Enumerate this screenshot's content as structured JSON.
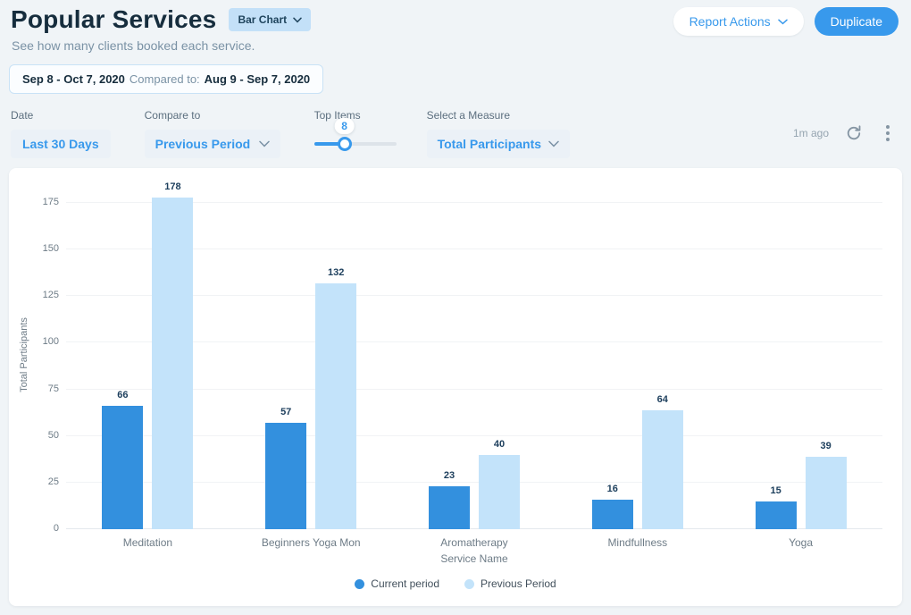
{
  "header": {
    "title": "Popular Services",
    "chart_type_badge": "Bar Chart",
    "subtitle": "See how many clients booked each service.",
    "report_actions_label": "Report Actions",
    "duplicate_label": "Duplicate",
    "date_range": {
      "current": "Sep 8 - Oct 7, 2020",
      "compared_label": "Compared to:",
      "previous": "Aug 9 - Sep 7, 2020"
    }
  },
  "filters": {
    "date": {
      "label": "Date",
      "value": "Last 30 Days"
    },
    "compare_to": {
      "label": "Compare to",
      "value": "Previous Period"
    },
    "top_items": {
      "label": "Top Items",
      "value": "8",
      "thumb_percent": 37
    },
    "measure": {
      "label": "Select a Measure",
      "value": "Total Participants"
    },
    "last_updated": "1m ago"
  },
  "colors": {
    "accent": "#3899EC",
    "current_bar": "#3390DE",
    "previous_bar": "#C3E3FA",
    "badge_bg": "#C3E0F8",
    "page_bg": "#F0F4F7"
  },
  "chart_data": {
    "type": "bar",
    "categories": [
      "Meditation",
      "Beginners Yoga Mon",
      "Aromatherapy",
      "Mindfullness",
      "Yoga"
    ],
    "series": [
      {
        "name": "Current period",
        "values": [
          66,
          57,
          23,
          16,
          15
        ],
        "color": "#3390DE"
      },
      {
        "name": "Previous Period",
        "values": [
          178,
          132,
          40,
          64,
          39
        ],
        "color": "#C3E3FA"
      }
    ],
    "title": "Popular Services",
    "xlabel": "Service Name",
    "ylabel": "Total Participants",
    "yticks": [
      0,
      25,
      50,
      75,
      100,
      125,
      150,
      175
    ],
    "ylim": [
      0,
      187
    ],
    "grid": true,
    "legend_position": "bottom"
  }
}
